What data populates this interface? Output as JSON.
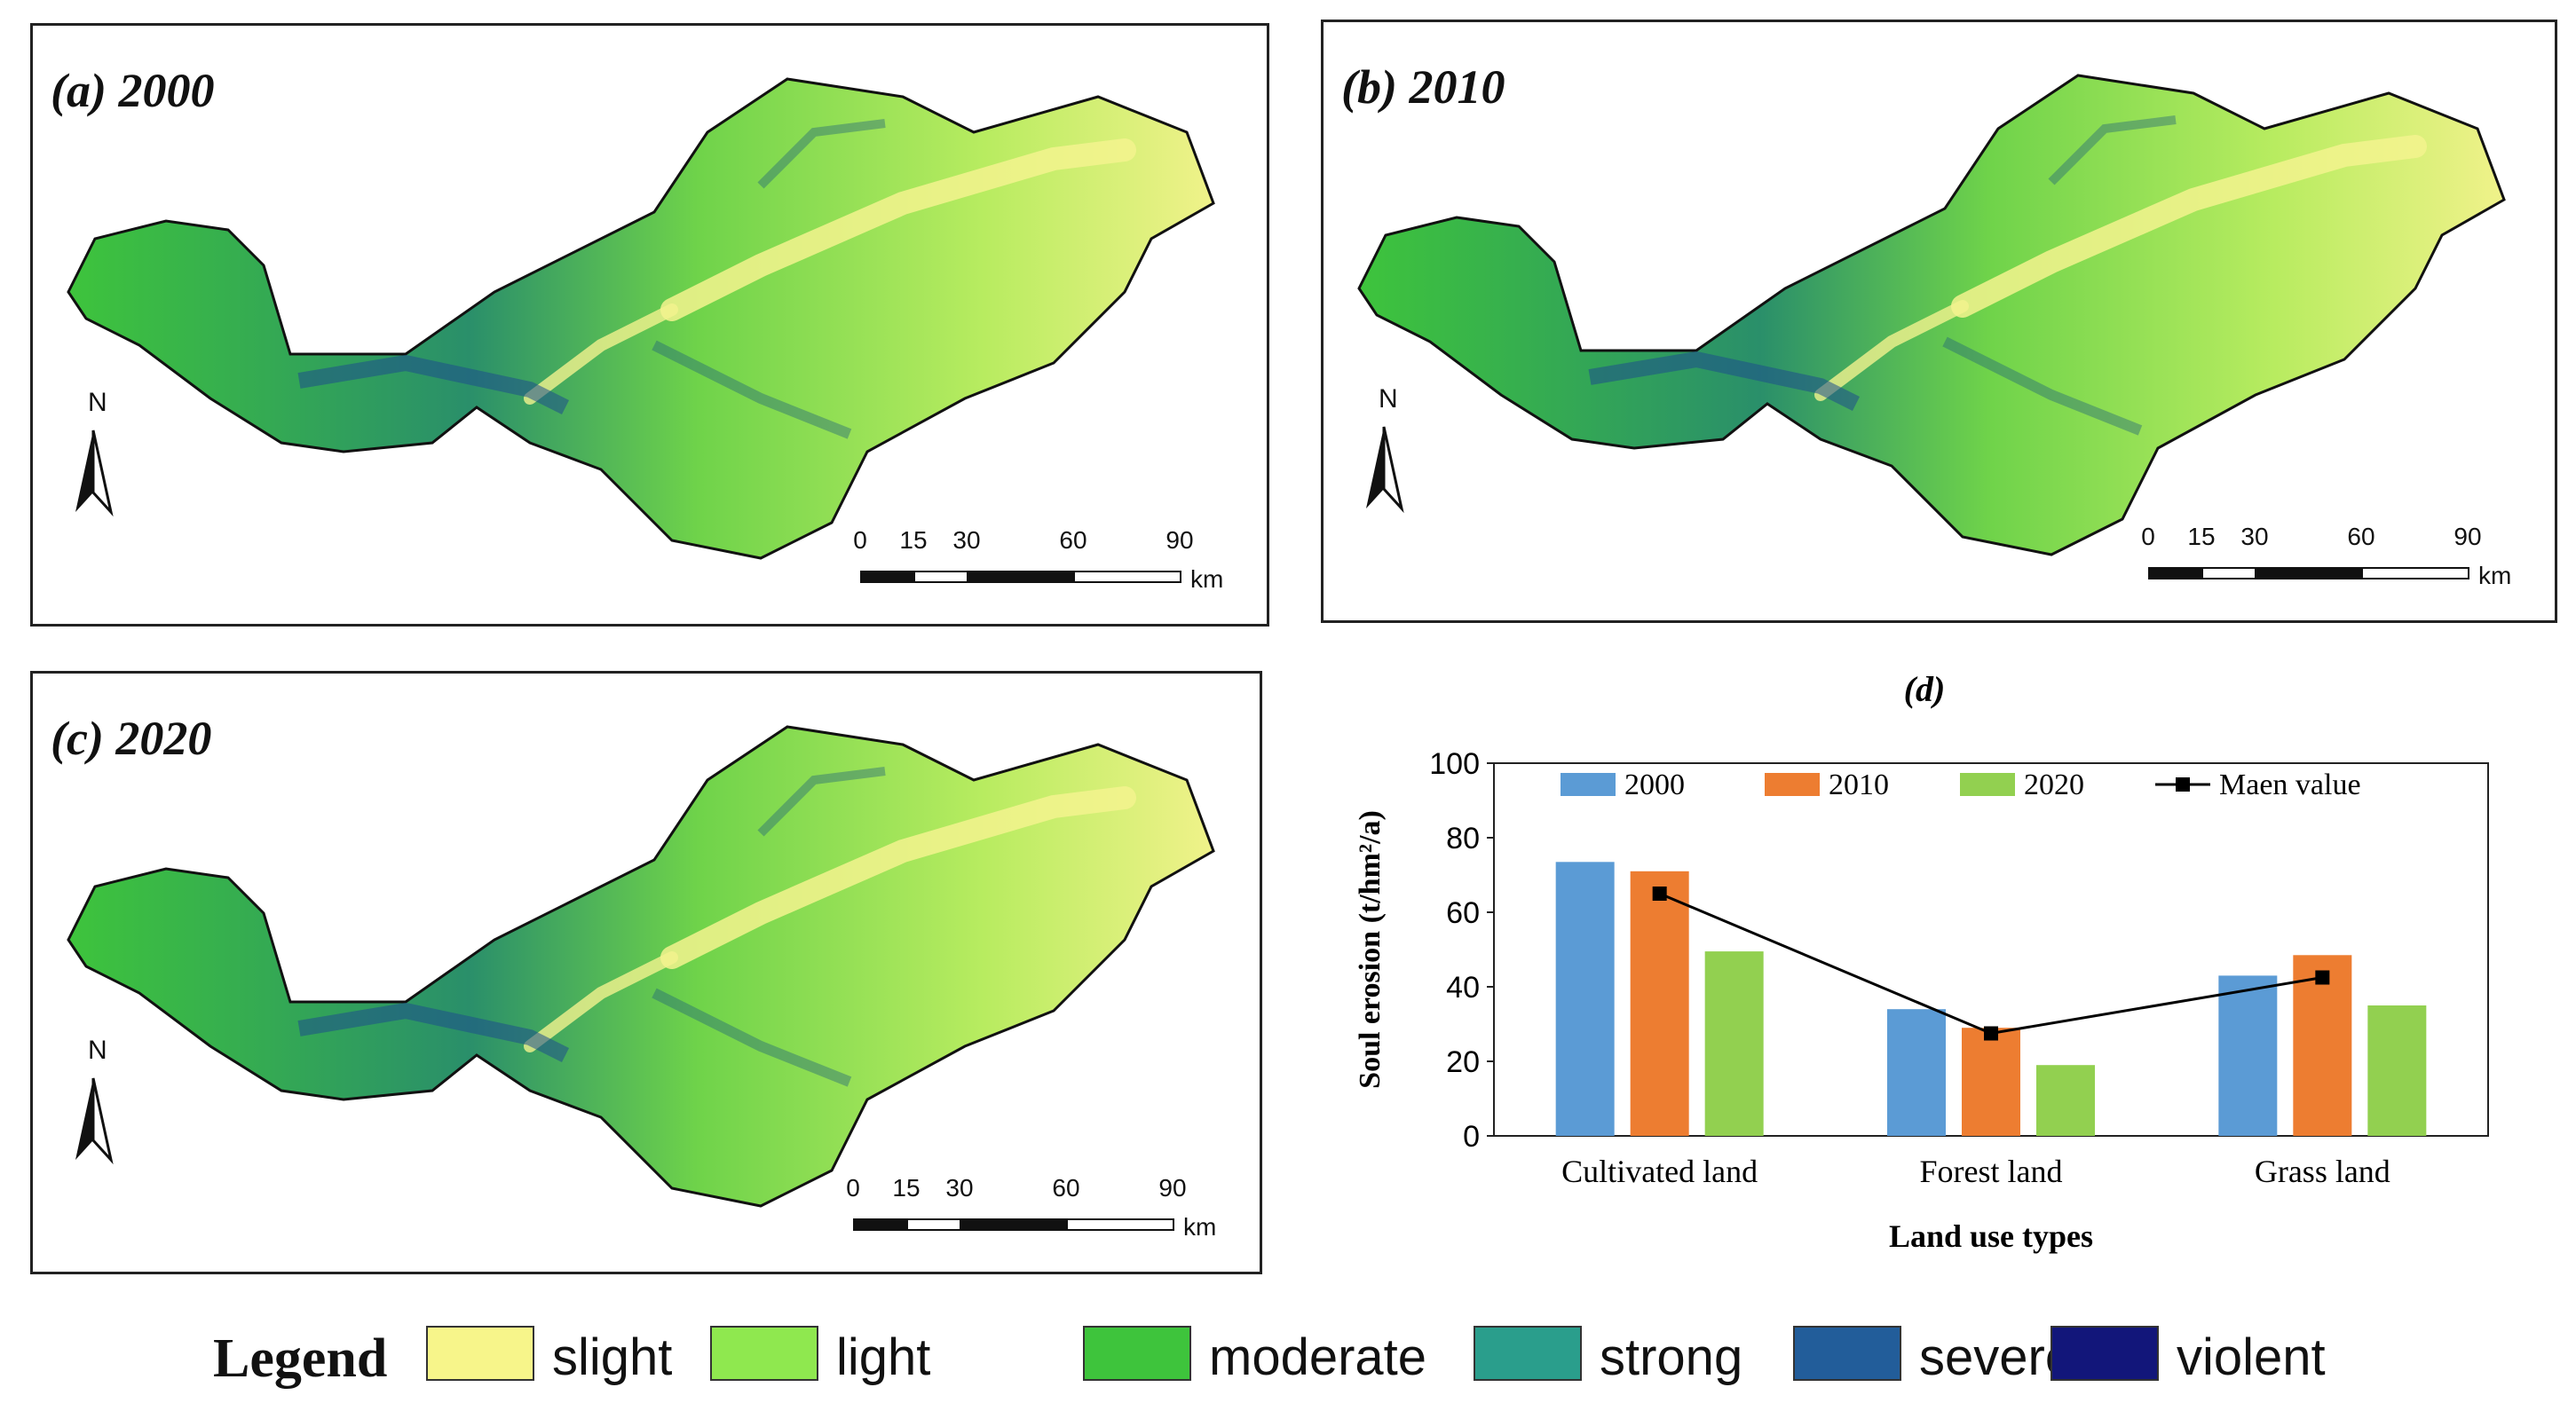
{
  "panels": [
    {
      "id": "a",
      "title": "(a) 2000"
    },
    {
      "id": "b",
      "title": "(b) 2010"
    },
    {
      "id": "c",
      "title": "(c) 2020"
    }
  ],
  "north_label": "N",
  "scale": {
    "ticks": [
      "0",
      "15",
      "30",
      "60",
      "90"
    ],
    "unit": "km"
  },
  "legend": {
    "title": "Legend",
    "items": [
      {
        "label": "slight",
        "color": "#f7f58a"
      },
      {
        "label": "light",
        "color": "#8fe84f"
      },
      {
        "label": "moderate",
        "color": "#3ec43c"
      },
      {
        "label": "strong",
        "color": "#2a9e8c"
      },
      {
        "label": "severe",
        "color": "#225d9a"
      },
      {
        "label": "violent",
        "color": "#12167a"
      }
    ]
  },
  "chart_data": {
    "type": "bar",
    "panel_label": "(d)",
    "categories": [
      "Cultivated land",
      "Forest land",
      "Grass land"
    ],
    "series": [
      {
        "name": "2000",
        "values": [
          73.5,
          34,
          43
        ],
        "color": "#5b9bd5"
      },
      {
        "name": "2010",
        "values": [
          71,
          29,
          48.5
        ],
        "color": "#ed7d31"
      },
      {
        "name": "2020",
        "values": [
          49.5,
          19,
          35
        ],
        "color": "#92d050"
      }
    ],
    "line": {
      "name": "Maen value",
      "values": [
        65,
        27.5,
        42.5
      ],
      "color": "#000000"
    },
    "xlabel": "Land use types",
    "ylabel": "Soul erosion  (t/hm²/a)",
    "ylim": [
      0,
      100
    ],
    "yticks": [
      "0",
      "20",
      "40",
      "60",
      "80",
      "100"
    ]
  }
}
